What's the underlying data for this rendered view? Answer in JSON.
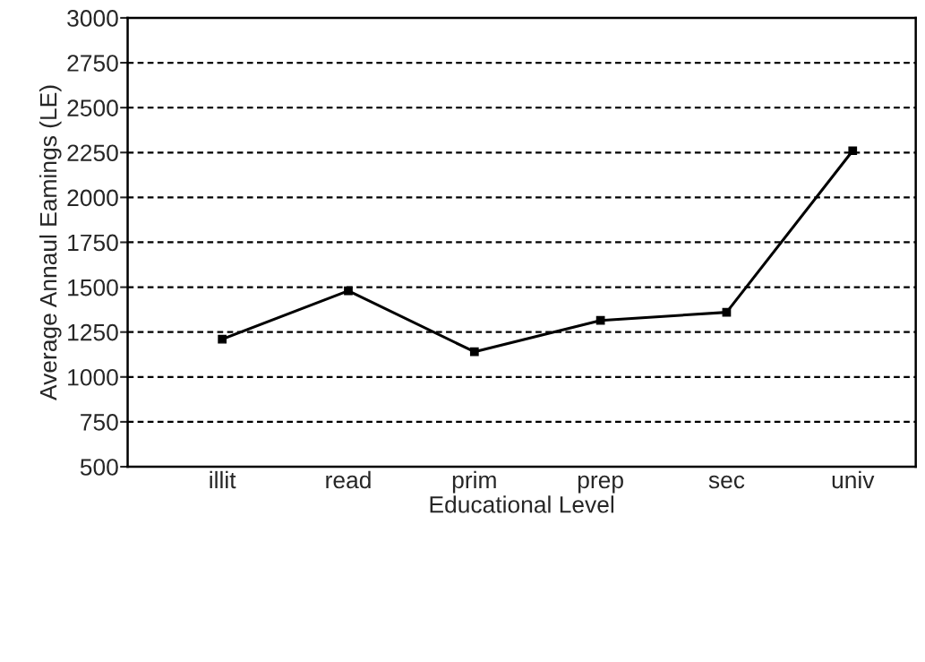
{
  "chart_data": {
    "type": "line",
    "xlabel": "Educational Level",
    "ylabel": "Average Annaul Eamings (LE)",
    "categories": [
      "illit",
      "read",
      "prim",
      "prep",
      "sec",
      "univ"
    ],
    "series": [
      {
        "color": "#000000",
        "values": [
          1210,
          1480,
          1140,
          1315,
          1360,
          2260
        ]
      }
    ],
    "ylim": [
      500,
      3000
    ],
    "yticks": [
      500,
      750,
      1000,
      1250,
      1500,
      1750,
      2000,
      2250,
      2500,
      2750,
      3000
    ],
    "grid": "y",
    "marker": "square",
    "line_style": "solid"
  }
}
